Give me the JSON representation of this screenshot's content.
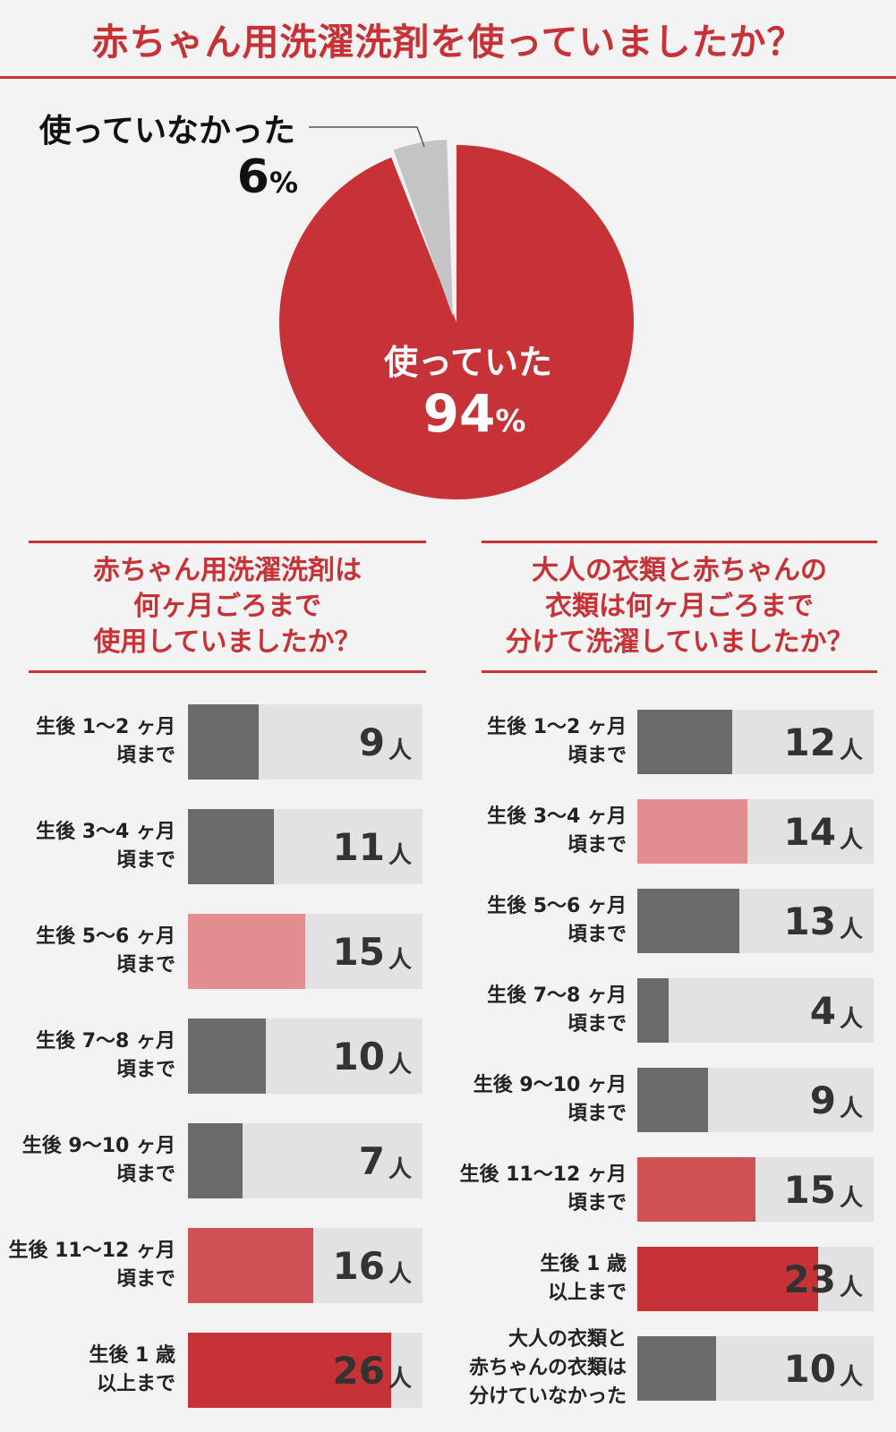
{
  "title": "赤ちゃん用洗濯洗剤を使っていましたか？",
  "colors": {
    "accent": "#c73237",
    "dark_bar": "#6b6b6b",
    "pink_bar": "#e28d8f",
    "medium_red_bar": "#d05154",
    "strong_red_bar": "#c73237",
    "bar_background": "#e2e2e2",
    "pie_unused": "#c4c4c4"
  },
  "chart_data": [
    {
      "type": "pie",
      "title": "赤ちゃん用洗濯洗剤を使っていましたか？",
      "slices": [
        {
          "label": "使っていた",
          "value": 94,
          "value_text": "94",
          "unit": "%",
          "color": "#c73237"
        },
        {
          "label": "使っていなかった",
          "value": 6,
          "value_text": "6",
          "unit": "%",
          "color": "#c4c4c4"
        }
      ]
    },
    {
      "type": "bar",
      "title_lines": [
        "赤ちゃん用洗濯洗剤は",
        "何ヶ月ごろまで",
        "使用していましたか？"
      ],
      "unit": "人",
      "max_value": 30,
      "items": [
        {
          "label_lines": [
            "生後 1〜2 ヶ月",
            "頃まで"
          ],
          "value": 9,
          "value_text": "9",
          "color": "#6b6b6b"
        },
        {
          "label_lines": [
            "生後 3〜4 ヶ月",
            "頃まで"
          ],
          "value": 11,
          "value_text": "11",
          "color": "#6b6b6b"
        },
        {
          "label_lines": [
            "生後 5〜6 ヶ月",
            "頃まで"
          ],
          "value": 15,
          "value_text": "15",
          "color": "#e28d8f"
        },
        {
          "label_lines": [
            "生後 7〜8 ヶ月",
            "頃まで"
          ],
          "value": 10,
          "value_text": "10",
          "color": "#6b6b6b"
        },
        {
          "label_lines": [
            "生後 9〜10 ヶ月",
            "頃まで"
          ],
          "value": 7,
          "value_text": "7",
          "color": "#6b6b6b"
        },
        {
          "label_lines": [
            "生後 11〜12 ヶ月",
            "頃まで"
          ],
          "value": 16,
          "value_text": "16",
          "color": "#d05154"
        },
        {
          "label_lines": [
            "生後 1 歳",
            "以上まで"
          ],
          "value": 26,
          "value_text": "26",
          "color": "#c73237"
        }
      ]
    },
    {
      "type": "bar",
      "title_lines": [
        "大人の衣類と赤ちゃんの",
        "衣類は何ヶ月ごろまで",
        "分けて洗濯していましたか？"
      ],
      "unit": "人",
      "max_value": 30,
      "items": [
        {
          "label_lines": [
            "生後 1〜2 ヶ月",
            "頃まで"
          ],
          "value": 12,
          "value_text": "12",
          "color": "#6b6b6b"
        },
        {
          "label_lines": [
            "生後 3〜4 ヶ月",
            "頃まで"
          ],
          "value": 14,
          "value_text": "14",
          "color": "#e28d8f"
        },
        {
          "label_lines": [
            "生後 5〜6 ヶ月",
            "頃まで"
          ],
          "value": 13,
          "value_text": "13",
          "color": "#6b6b6b"
        },
        {
          "label_lines": [
            "生後 7〜8 ヶ月",
            "頃まで"
          ],
          "value": 4,
          "value_text": "4",
          "color": "#6b6b6b"
        },
        {
          "label_lines": [
            "生後 9〜10 ヶ月",
            "頃まで"
          ],
          "value": 9,
          "value_text": "9",
          "color": "#6b6b6b"
        },
        {
          "label_lines": [
            "生後 11〜12 ヶ月",
            "頃まで"
          ],
          "value": 15,
          "value_text": "15",
          "color": "#d05154"
        },
        {
          "label_lines": [
            "生後 1 歳",
            "以上まで"
          ],
          "value": 23,
          "value_text": "23",
          "color": "#c73237"
        },
        {
          "label_lines": [
            "大人の衣類と",
            "赤ちゃんの衣類は",
            "分けていなかった"
          ],
          "value": 10,
          "value_text": "10",
          "color": "#6b6b6b"
        }
      ]
    }
  ]
}
